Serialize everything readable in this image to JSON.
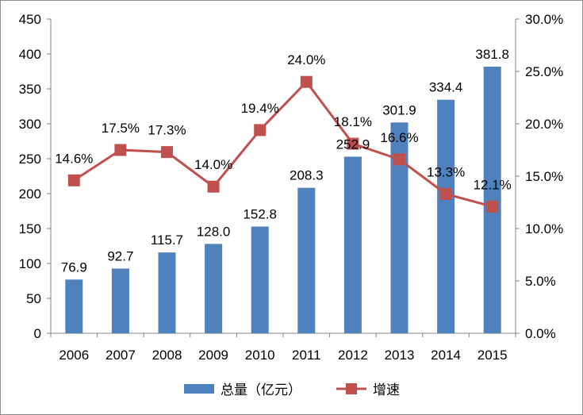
{
  "chart_data": {
    "type": "bar",
    "categories": [
      "2006",
      "2007",
      "2008",
      "2009",
      "2010",
      "2011",
      "2012",
      "2013",
      "2014",
      "2015"
    ],
    "series": [
      {
        "name": "总量（亿元）",
        "type": "bar",
        "axis": "left",
        "color": "#4F81BD",
        "values": [
          76.9,
          92.7,
          115.7,
          128.0,
          152.8,
          208.3,
          252.9,
          301.9,
          334.4,
          381.8
        ],
        "labels": [
          "76.9",
          "92.7",
          "115.7",
          "128.0",
          "152.8",
          "208.3",
          "252.9",
          "301.9",
          "334.4",
          "381.8"
        ]
      },
      {
        "name": "增速",
        "type": "line",
        "axis": "right",
        "color": "#C0504D",
        "marker": "square",
        "values": [
          14.6,
          17.5,
          17.3,
          14.0,
          19.4,
          24.0,
          18.1,
          16.6,
          13.3,
          12.1
        ],
        "labels": [
          "14.6%",
          "17.5%",
          "17.3%",
          "14.0%",
          "19.4%",
          "24.0%",
          "18.1%",
          "16.6%",
          "13.3%",
          "12.1%"
        ]
      }
    ],
    "y_left": {
      "min": 0,
      "max": 450,
      "ticks": [
        "0",
        "50",
        "100",
        "150",
        "200",
        "250",
        "300",
        "350",
        "400",
        "450"
      ]
    },
    "y_right": {
      "min": 0,
      "max": 30,
      "ticks": [
        "0.0%",
        "5.0%",
        "10.0%",
        "15.0%",
        "20.0%",
        "25.0%",
        "30.0%"
      ]
    },
    "grid": false,
    "legend_position": "bottom"
  }
}
